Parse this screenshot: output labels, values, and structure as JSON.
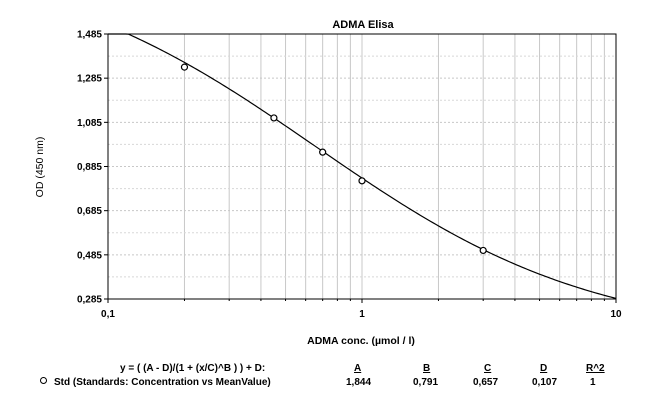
{
  "chart_data": {
    "type": "line",
    "title": "ADMA Elisa",
    "xlabel": "ADMA conc. (µmol / l)",
    "ylabel": "OD (450 nm)",
    "x_scale": "log",
    "xlim": [
      0.1,
      10
    ],
    "ylim": [
      0.285,
      1.485
    ],
    "x_tick_labels": [
      "0,1",
      "1",
      "10"
    ],
    "y_tick_labels": [
      "0,285",
      "0,485",
      "0,685",
      "0,885",
      "1,085",
      "1,285",
      "1,485"
    ],
    "grid": true,
    "points": {
      "x": [
        0.2,
        0.45,
        0.7,
        1.0,
        3.0
      ],
      "y": [
        1.335,
        1.105,
        0.95,
        0.82,
        0.505
      ]
    },
    "fit": {
      "A": 1.844,
      "B": 0.791,
      "C": 0.657,
      "D": 0.107
    }
  },
  "fit_table": {
    "equation": "y = ( (A - D)/(1 + (x/C)^B ) ) + D:",
    "headers": [
      "A",
      "B",
      "C",
      "D",
      "R^2"
    ],
    "row_label": "Std (Standards: Concentration vs MeanValue)",
    "values": [
      "1,844",
      "0,791",
      "0,657",
      "0,107",
      "1"
    ]
  }
}
